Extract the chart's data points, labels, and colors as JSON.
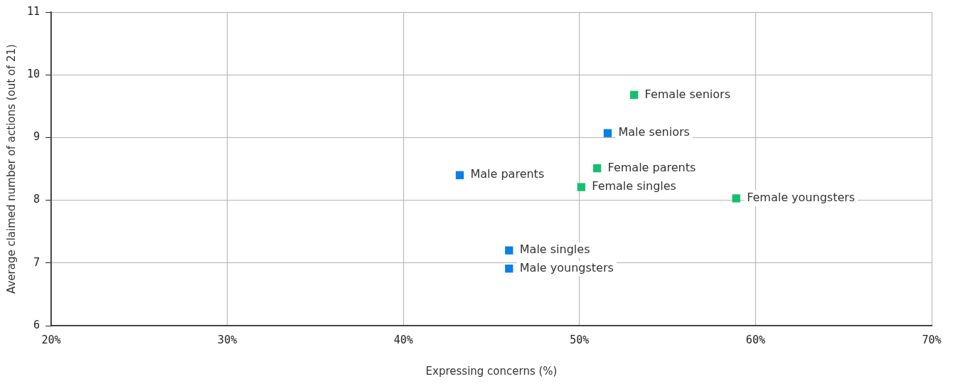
{
  "chart_data": {
    "type": "scatter",
    "xlabel": "Expressing concerns (%)",
    "ylabel": "Average claimed number of actions (out of 21)",
    "xlim": [
      20,
      70
    ],
    "xticks": [
      {
        "value": 20,
        "label": "20%"
      },
      {
        "value": 30,
        "label": "30%"
      },
      {
        "value": 40,
        "label": "40%"
      },
      {
        "value": 50,
        "label": "50%"
      },
      {
        "value": 60,
        "label": "60%"
      },
      {
        "value": 70,
        "label": "70%"
      }
    ],
    "ylim": [
      6,
      11
    ],
    "yticks": [
      6,
      7,
      8,
      9,
      10,
      11
    ],
    "grid": true,
    "legend": false,
    "marker": "square",
    "series": [
      {
        "color": "#0a7fe8",
        "x": [
          51.6,
          43.2,
          46.0,
          46.0
        ],
        "values": [
          9.07,
          8.4,
          7.2,
          6.91
        ]
      },
      {
        "color": "#14c06e",
        "x": [
          53.1,
          51.0,
          50.1,
          58.9
        ],
        "values": [
          9.68,
          8.51,
          8.21,
          8.03
        ]
      }
    ],
    "annotations": [
      {
        "text": "Male seniors",
        "x": 51.6,
        "y": 9.07
      },
      {
        "text": "Male parents",
        "x": 43.2,
        "y": 8.4
      },
      {
        "text": "Male singles",
        "x": 46.0,
        "y": 7.2
      },
      {
        "text": "Male youngsters",
        "x": 46.0,
        "y": 6.91
      },
      {
        "text": "Female seniors",
        "x": 53.1,
        "y": 9.68
      },
      {
        "text": "Female parents",
        "x": 51.0,
        "y": 8.51
      },
      {
        "text": "Female singles",
        "x": 50.1,
        "y": 8.21
      },
      {
        "text": "Female youngsters",
        "x": 58.9,
        "y": 8.03
      }
    ]
  }
}
